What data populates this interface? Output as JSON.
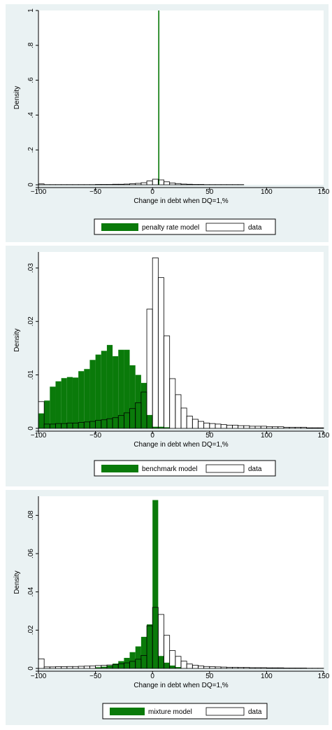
{
  "chart_data": [
    {
      "type": "bar",
      "xlabel": "Change in debt when DQ=1,%",
      "ylabel": "Density",
      "xlim": [
        -100,
        150
      ],
      "ylim": [
        0,
        1
      ],
      "xticks": [
        -100,
        -50,
        0,
        50,
        100,
        150
      ],
      "xtick_labels": [
        "−100",
        "−50",
        "0",
        "50",
        "100",
        "150"
      ],
      "yticks": [
        0,
        0.2,
        0.4,
        0.6,
        0.8,
        1
      ],
      "ytick_labels": [
        "0",
        ".2",
        ".4",
        ".6",
        ".8",
        "1"
      ],
      "bin_width": 5,
      "series": [
        {
          "name": "penalty rate model",
          "style": "filled",
          "color": "#0a7a0a",
          "bins": [
            {
              "x": 5,
              "width": 1,
              "value": 1.0
            }
          ]
        },
        {
          "name": "data",
          "style": "outline",
          "color": "#000000",
          "bins": [
            {
              "x": -100,
              "value": 0.005
            },
            {
              "x": -95,
              "value": 0.001
            },
            {
              "x": -90,
              "value": 0.001
            },
            {
              "x": -85,
              "value": 0.001
            },
            {
              "x": -80,
              "value": 0.001
            },
            {
              "x": -75,
              "value": 0.001
            },
            {
              "x": -70,
              "value": 0.001
            },
            {
              "x": -65,
              "value": 0.001
            },
            {
              "x": -60,
              "value": 0.001
            },
            {
              "x": -55,
              "value": 0.001
            },
            {
              "x": -50,
              "value": 0.002
            },
            {
              "x": -45,
              "value": 0.002
            },
            {
              "x": -40,
              "value": 0.002
            },
            {
              "x": -35,
              "value": 0.003
            },
            {
              "x": -30,
              "value": 0.003
            },
            {
              "x": -25,
              "value": 0.004
            },
            {
              "x": -20,
              "value": 0.006
            },
            {
              "x": -15,
              "value": 0.008
            },
            {
              "x": -10,
              "value": 0.012
            },
            {
              "x": -5,
              "value": 0.022
            },
            {
              "x": 0,
              "value": 0.032
            },
            {
              "x": 5,
              "value": 0.028
            },
            {
              "x": 10,
              "value": 0.017
            },
            {
              "x": 15,
              "value": 0.01
            },
            {
              "x": 20,
              "value": 0.007
            },
            {
              "x": 25,
              "value": 0.004
            },
            {
              "x": 30,
              "value": 0.003
            },
            {
              "x": 35,
              "value": 0.002
            },
            {
              "x": 40,
              "value": 0.002
            },
            {
              "x": 45,
              "value": 0.001
            },
            {
              "x": 50,
              "value": 0.001
            },
            {
              "x": 55,
              "value": 0.001
            },
            {
              "x": 60,
              "value": 0.001
            },
            {
              "x": 65,
              "value": 0.001
            },
            {
              "x": 70,
              "value": 0.001
            },
            {
              "x": 75,
              "value": 0.001
            }
          ]
        }
      ],
      "legend": {
        "placement": "bottom",
        "items": [
          "penalty rate model",
          "data"
        ]
      }
    },
    {
      "type": "bar",
      "xlabel": "Change in debt when DQ=1,%",
      "ylabel": "Density",
      "xlim": [
        -100,
        150
      ],
      "ylim": [
        0,
        0.033
      ],
      "xticks": [
        -100,
        -50,
        0,
        50,
        100,
        150
      ],
      "xtick_labels": [
        "−100",
        "−50",
        "0",
        "50",
        "100",
        "150"
      ],
      "yticks": [
        0,
        0.01,
        0.02,
        0.03
      ],
      "ytick_labels": [
        "0",
        ".01",
        ".02",
        ".03"
      ],
      "bin_width": 5,
      "series": [
        {
          "name": "benchmark model",
          "style": "filled",
          "color": "#0a7a0a",
          "bins": [
            {
              "x": -100,
              "value": 0.0028
            },
            {
              "x": -95,
              "value": 0.0052
            },
            {
              "x": -90,
              "value": 0.0078
            },
            {
              "x": -85,
              "value": 0.0088
            },
            {
              "x": -80,
              "value": 0.0094
            },
            {
              "x": -75,
              "value": 0.0096
            },
            {
              "x": -70,
              "value": 0.0095
            },
            {
              "x": -65,
              "value": 0.0107
            },
            {
              "x": -60,
              "value": 0.0111
            },
            {
              "x": -55,
              "value": 0.0128
            },
            {
              "x": -50,
              "value": 0.0138
            },
            {
              "x": -45,
              "value": 0.0145
            },
            {
              "x": -40,
              "value": 0.0156
            },
            {
              "x": -35,
              "value": 0.0135
            },
            {
              "x": -30,
              "value": 0.0147
            },
            {
              "x": -25,
              "value": 0.0147
            },
            {
              "x": -20,
              "value": 0.0118
            },
            {
              "x": -15,
              "value": 0.01
            },
            {
              "x": -10,
              "value": 0.0085
            },
            {
              "x": -5,
              "value": 0.0025
            },
            {
              "x": 0,
              "value": 0.0003
            },
            {
              "x": 5,
              "value": 0.0003
            },
            {
              "x": 10,
              "value": 0.0002
            }
          ]
        },
        {
          "name": "data",
          "style": "outline",
          "color": "#000000",
          "bins": [
            {
              "x": -100,
              "value": 0.005
            },
            {
              "x": -95,
              "value": 0.0008
            },
            {
              "x": -90,
              "value": 0.0008
            },
            {
              "x": -85,
              "value": 0.0009
            },
            {
              "x": -80,
              "value": 0.0009
            },
            {
              "x": -75,
              "value": 0.001
            },
            {
              "x": -70,
              "value": 0.001
            },
            {
              "x": -65,
              "value": 0.0011
            },
            {
              "x": -60,
              "value": 0.0012
            },
            {
              "x": -55,
              "value": 0.0013
            },
            {
              "x": -50,
              "value": 0.0015
            },
            {
              "x": -45,
              "value": 0.0016
            },
            {
              "x": -40,
              "value": 0.0018
            },
            {
              "x": -35,
              "value": 0.002
            },
            {
              "x": -30,
              "value": 0.0024
            },
            {
              "x": -25,
              "value": 0.0029
            },
            {
              "x": -20,
              "value": 0.0037
            },
            {
              "x": -15,
              "value": 0.0048
            },
            {
              "x": -10,
              "value": 0.0068
            },
            {
              "x": -5,
              "value": 0.0223
            },
            {
              "x": 0,
              "value": 0.0319
            },
            {
              "x": 5,
              "value": 0.0282
            },
            {
              "x": 10,
              "value": 0.0173
            },
            {
              "x": 15,
              "value": 0.0093
            },
            {
              "x": 20,
              "value": 0.0063
            },
            {
              "x": 25,
              "value": 0.0038
            },
            {
              "x": 30,
              "value": 0.0023
            },
            {
              "x": 35,
              "value": 0.0017
            },
            {
              "x": 40,
              "value": 0.0013
            },
            {
              "x": 45,
              "value": 0.001
            },
            {
              "x": 50,
              "value": 0.0009
            },
            {
              "x": 55,
              "value": 0.0008
            },
            {
              "x": 60,
              "value": 0.0007
            },
            {
              "x": 65,
              "value": 0.0006
            },
            {
              "x": 70,
              "value": 0.0006
            },
            {
              "x": 75,
              "value": 0.0005
            },
            {
              "x": 80,
              "value": 0.0005
            },
            {
              "x": 85,
              "value": 0.0004
            },
            {
              "x": 90,
              "value": 0.0004
            },
            {
              "x": 95,
              "value": 0.0004
            },
            {
              "x": 100,
              "value": 0.0003
            },
            {
              "x": 105,
              "value": 0.0003
            },
            {
              "x": 110,
              "value": 0.0003
            },
            {
              "x": 115,
              "value": 0.0002
            },
            {
              "x": 120,
              "value": 0.0002
            },
            {
              "x": 125,
              "value": 0.0002
            },
            {
              "x": 130,
              "value": 0.0002
            },
            {
              "x": 135,
              "value": 0.0001
            },
            {
              "x": 140,
              "value": 0.0001
            },
            {
              "x": 145,
              "value": 0.0001
            }
          ]
        }
      ],
      "legend": {
        "placement": "bottom",
        "items": [
          "benchmark model",
          "data"
        ]
      }
    },
    {
      "type": "bar",
      "xlabel": "Change in debt when DQ=1,%",
      "ylabel": "Density",
      "xlim": [
        -100,
        150
      ],
      "ylim": [
        0,
        0.09
      ],
      "xticks": [
        -100,
        -50,
        0,
        50,
        100,
        150
      ],
      "xtick_labels": [
        "−100",
        "−50",
        "0",
        "50",
        "100",
        "150"
      ],
      "yticks": [
        0,
        0.02,
        0.04,
        0.06,
        0.08
      ],
      "ytick_labels": [
        "0",
        ".02",
        ".04",
        ".06",
        ".08"
      ],
      "bin_width": 5,
      "series": [
        {
          "name": "mixture model",
          "style": "filled",
          "color": "#0a7a0a",
          "bins": [
            {
              "x": -50,
              "value": 0.0006
            },
            {
              "x": -45,
              "value": 0.0009
            },
            {
              "x": -40,
              "value": 0.0015
            },
            {
              "x": -35,
              "value": 0.0025
            },
            {
              "x": -30,
              "value": 0.0038
            },
            {
              "x": -25,
              "value": 0.0055
            },
            {
              "x": -20,
              "value": 0.0085
            },
            {
              "x": -15,
              "value": 0.0115
            },
            {
              "x": -10,
              "value": 0.0165
            },
            {
              "x": -5,
              "value": 0.023
            },
            {
              "x": 0,
              "value": 0.088
            },
            {
              "x": 5,
              "value": 0.0065
            },
            {
              "x": 10,
              "value": 0.003
            },
            {
              "x": 15,
              "value": 0.0015
            },
            {
              "x": 20,
              "value": 0.0007
            }
          ]
        },
        {
          "name": "data",
          "style": "outline",
          "color": "#000000",
          "bins": [
            {
              "x": -100,
              "value": 0.005
            },
            {
              "x": -95,
              "value": 0.0008
            },
            {
              "x": -90,
              "value": 0.0008
            },
            {
              "x": -85,
              "value": 0.0009
            },
            {
              "x": -80,
              "value": 0.0009
            },
            {
              "x": -75,
              "value": 0.001
            },
            {
              "x": -70,
              "value": 0.001
            },
            {
              "x": -65,
              "value": 0.0011
            },
            {
              "x": -60,
              "value": 0.0012
            },
            {
              "x": -55,
              "value": 0.0013
            },
            {
              "x": -50,
              "value": 0.0015
            },
            {
              "x": -45,
              "value": 0.0016
            },
            {
              "x": -40,
              "value": 0.0018
            },
            {
              "x": -35,
              "value": 0.002
            },
            {
              "x": -30,
              "value": 0.0024
            },
            {
              "x": -25,
              "value": 0.0029
            },
            {
              "x": -20,
              "value": 0.0037
            },
            {
              "x": -15,
              "value": 0.0048
            },
            {
              "x": -10,
              "value": 0.0068
            },
            {
              "x": -5,
              "value": 0.0223
            },
            {
              "x": 0,
              "value": 0.0319
            },
            {
              "x": 5,
              "value": 0.0282
            },
            {
              "x": 10,
              "value": 0.0173
            },
            {
              "x": 15,
              "value": 0.0093
            },
            {
              "x": 20,
              "value": 0.0063
            },
            {
              "x": 25,
              "value": 0.0038
            },
            {
              "x": 30,
              "value": 0.0023
            },
            {
              "x": 35,
              "value": 0.0017
            },
            {
              "x": 40,
              "value": 0.0013
            },
            {
              "x": 45,
              "value": 0.001
            },
            {
              "x": 50,
              "value": 0.0009
            },
            {
              "x": 55,
              "value": 0.0008
            },
            {
              "x": 60,
              "value": 0.0007
            },
            {
              "x": 65,
              "value": 0.0006
            },
            {
              "x": 70,
              "value": 0.0006
            },
            {
              "x": 75,
              "value": 0.0005
            },
            {
              "x": 80,
              "value": 0.0005
            },
            {
              "x": 85,
              "value": 0.0004
            },
            {
              "x": 90,
              "value": 0.0004
            },
            {
              "x": 95,
              "value": 0.0004
            },
            {
              "x": 100,
              "value": 0.0003
            },
            {
              "x": 105,
              "value": 0.0003
            },
            {
              "x": 110,
              "value": 0.0003
            },
            {
              "x": 115,
              "value": 0.0002
            },
            {
              "x": 120,
              "value": 0.0002
            },
            {
              "x": 125,
              "value": 0.0002
            },
            {
              "x": 130,
              "value": 0.0002
            },
            {
              "x": 135,
              "value": 0.0001
            },
            {
              "x": 140,
              "value": 0.0001
            },
            {
              "x": 145,
              "value": 0.0001
            }
          ]
        }
      ],
      "legend": {
        "placement": "bottom",
        "items": [
          "mixture model",
          "data"
        ]
      }
    }
  ]
}
